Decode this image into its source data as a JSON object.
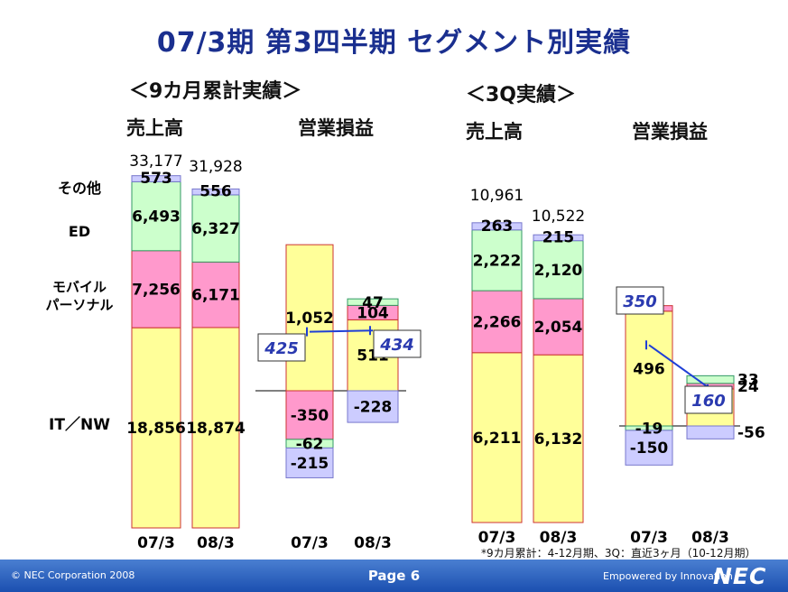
{
  "title": "07/3期 第3四半期 セグメント別実績",
  "sections": {
    "cumulative": "＜9カ月累計実績＞",
    "quarter": "＜3Q実績＞"
  },
  "headers": {
    "sales": "売上高",
    "op_income": "営業損益"
  },
  "categories": {
    "other": "その他",
    "ed": "ED",
    "mobile_l1": "モバイル",
    "mobile_l2": "パーソナル",
    "itnw": "IT／NW"
  },
  "footnote": "*9カ月累計：4-12月期、3Q：直近3ヶ月（10-12月期）",
  "footer": {
    "copyright": "© NEC Corporation 2008",
    "page": "Page 6",
    "tagline": "Empowered by Innovation",
    "logo": "NEC"
  },
  "colors": {
    "itnw": "#ffff99",
    "mobile": "#ff99cc",
    "ed": "#ccffcc",
    "other": "#ccccff",
    "title": "#1a2f8f",
    "callout_text": "#2a3ab0",
    "callout_line": "#1f3fd6"
  },
  "chart_data": [
    {
      "type": "bar",
      "title": "売上高",
      "subtitle": "9カ月累計実績",
      "categories": [
        "07/3",
        "08/3"
      ],
      "series": [
        {
          "name": "IT／NW",
          "values": [
            18856,
            18874
          ],
          "labels": [
            "18,856",
            "18,874"
          ]
        },
        {
          "name": "モバイル パーソナル",
          "values": [
            7256,
            6171
          ],
          "labels": [
            "7,256",
            "6,171"
          ]
        },
        {
          "name": "ED",
          "values": [
            6493,
            6327
          ],
          "labels": [
            "6,493",
            "6,327"
          ]
        },
        {
          "name": "その他",
          "values": [
            573,
            556
          ],
          "labels": [
            "573",
            "556"
          ]
        }
      ],
      "totals": [
        33177,
        31928
      ],
      "total_labels": [
        "33,177",
        "31,928"
      ]
    },
    {
      "type": "bar",
      "title": "営業損益",
      "subtitle": "9カ月累計実績",
      "categories": [
        "07/3",
        "08/3"
      ],
      "series": [
        {
          "name": "IT／NW",
          "values": [
            1052,
            511
          ],
          "labels": [
            "1,052",
            "511"
          ]
        },
        {
          "name": "モバイル パーソナル",
          "values": [
            -350,
            104
          ],
          "labels": [
            "-350",
            "104"
          ]
        },
        {
          "name": "ED",
          "values": [
            -62,
            47
          ],
          "labels": [
            "-62",
            "47"
          ]
        },
        {
          "name": "その他",
          "values": [
            -215,
            -228
          ],
          "labels": [
            "-215",
            "-228"
          ]
        }
      ],
      "totals": [
        425,
        434
      ],
      "total_labels": [
        "425",
        "434"
      ]
    },
    {
      "type": "bar",
      "title": "売上高",
      "subtitle": "3Q実績",
      "categories": [
        "07/3",
        "08/3"
      ],
      "series": [
        {
          "name": "IT／NW",
          "values": [
            6211,
            6132
          ],
          "labels": [
            "6,211",
            "6,132"
          ]
        },
        {
          "name": "モバイル パーソナル",
          "values": [
            2266,
            2054
          ],
          "labels": [
            "2,266",
            "2,054"
          ]
        },
        {
          "name": "ED",
          "values": [
            2222,
            2120
          ],
          "labels": [
            "2,222",
            "2,120"
          ]
        },
        {
          "name": "その他",
          "values": [
            263,
            215
          ],
          "labels": [
            "263",
            "215"
          ]
        }
      ],
      "totals": [
        10961,
        10522
      ],
      "total_labels": [
        "10,961",
        "10,522"
      ]
    },
    {
      "type": "bar",
      "title": "営業損益",
      "subtitle": "3Q実績",
      "categories": [
        "07/3",
        "08/3"
      ],
      "series": [
        {
          "name": "IT／NW",
          "values": [
            496,
            160
          ],
          "labels": [
            "496",
            "160"
          ]
        },
        {
          "name": "モバイル パーソナル",
          "values": [
            24,
            24
          ],
          "labels": [
            "24",
            "24"
          ]
        },
        {
          "name": "ED",
          "values": [
            -19,
            33
          ],
          "labels": [
            "-19",
            "33"
          ]
        },
        {
          "name": "その他",
          "values": [
            -150,
            -56
          ],
          "labels": [
            "-150",
            "-56"
          ]
        }
      ],
      "totals": [
        350,
        160
      ],
      "total_labels": [
        "350",
        "160"
      ]
    }
  ]
}
